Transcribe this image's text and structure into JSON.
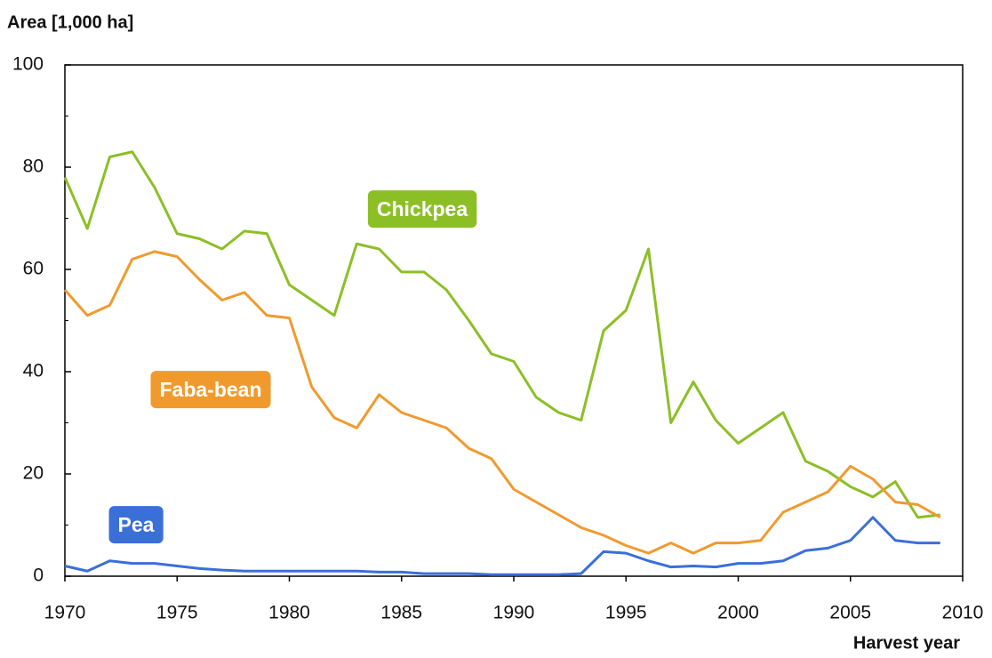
{
  "chart_data": {
    "type": "line",
    "y_label": "Area [1,000 ha]",
    "x_label": "Harvest year",
    "x": [
      1970,
      1971,
      1972,
      1973,
      1974,
      1975,
      1976,
      1977,
      1978,
      1979,
      1980,
      1981,
      1982,
      1983,
      1984,
      1985,
      1986,
      1987,
      1988,
      1989,
      1990,
      1991,
      1992,
      1993,
      1994,
      1995,
      1996,
      1997,
      1998,
      1999,
      2000,
      2001,
      2002,
      2003,
      2004,
      2005,
      2006,
      2007,
      2008,
      2009
    ],
    "series": [
      {
        "name": "Chickpea",
        "color": "#8cbf26",
        "values": [
          78,
          68,
          82,
          83,
          76,
          67,
          66,
          64,
          67.5,
          67,
          57,
          54,
          51,
          65,
          64,
          59.5,
          59.5,
          56,
          50,
          43.5,
          42,
          35,
          32,
          30.5,
          48,
          52,
          64,
          30,
          38,
          30.5,
          26,
          29,
          32,
          22.5,
          20.5,
          17.5,
          15.5,
          18.5,
          11.5,
          12
        ]
      },
      {
        "name": "Faba-bean",
        "color": "#f09a2e",
        "values": [
          56,
          51,
          53,
          62,
          63.5,
          62.5,
          58,
          54,
          55.5,
          51,
          50.5,
          37,
          31,
          29,
          35.5,
          32,
          30.5,
          29,
          25,
          23,
          17,
          14.5,
          12,
          9.5,
          8,
          6,
          4.5,
          6.5,
          4.5,
          6.5,
          6.5,
          7,
          12.5,
          14.5,
          16.5,
          21.5,
          19,
          14.5,
          14,
          11.5
        ]
      },
      {
        "name": "Pea",
        "color": "#3a6fd8",
        "values": [
          2,
          1,
          3,
          2.5,
          2.5,
          2,
          1.5,
          1.2,
          1,
          1,
          1,
          1,
          1,
          1,
          0.8,
          0.8,
          0.5,
          0.5,
          0.5,
          0.3,
          0.3,
          0.3,
          0.3,
          0.5,
          4.8,
          4.5,
          3,
          1.8,
          2,
          1.8,
          2.5,
          2.5,
          3,
          5,
          5.5,
          7,
          11.5,
          7,
          6.5,
          6.5
        ]
      }
    ],
    "xlim": [
      1970,
      2010
    ],
    "xticks": [
      1970,
      1975,
      1980,
      1985,
      1990,
      1995,
      2000,
      2005,
      2010
    ],
    "ylim": [
      0,
      100
    ],
    "yticks": [
      0,
      20,
      40,
      60,
      80,
      100
    ]
  }
}
